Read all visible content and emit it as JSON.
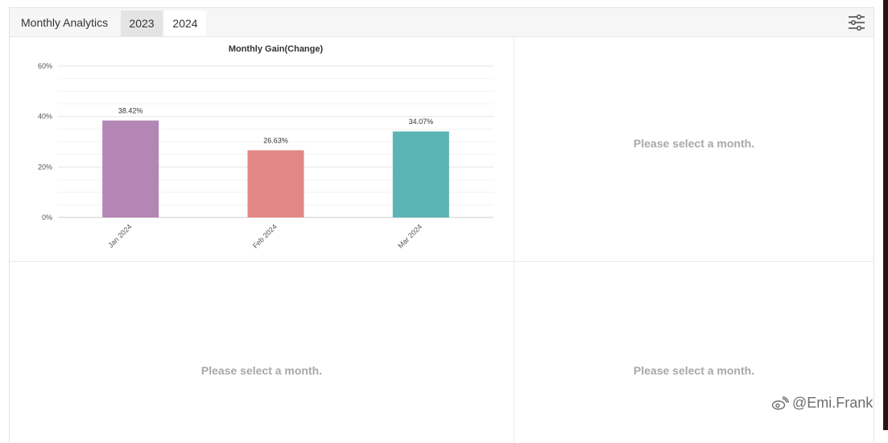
{
  "header": {
    "title": "Monthly Analytics",
    "tabs": [
      {
        "label": "2023",
        "active": false
      },
      {
        "label": "2024",
        "active": true
      }
    ],
    "filter_icon": "sliders-icon"
  },
  "panels": {
    "top_right": {
      "placeholder": "Please select a month."
    },
    "bottom_left": {
      "placeholder": "Please select a month."
    },
    "bottom_right": {
      "placeholder": "Please select a month."
    }
  },
  "chart_data": {
    "type": "bar",
    "title": "Monthly Gain(Change)",
    "categories": [
      "Jan 2024",
      "Feb 2024",
      "Mar 2024"
    ],
    "values": [
      38.42,
      26.63,
      34.07
    ],
    "data_labels": [
      "38.42%",
      "26.63%",
      "34.07%"
    ],
    "colors": [
      "#b386b5",
      "#e38785",
      "#5ab4b4"
    ],
    "yticks": [
      0,
      20,
      40,
      60
    ],
    "ytick_labels": [
      "0%",
      "20%",
      "40%",
      "60%"
    ],
    "ylim": [
      0,
      60
    ],
    "xlabel": "",
    "ylabel": "",
    "grid": true
  },
  "watermark": {
    "text": "@Emi.Frank",
    "icon": "weibo-icon"
  }
}
